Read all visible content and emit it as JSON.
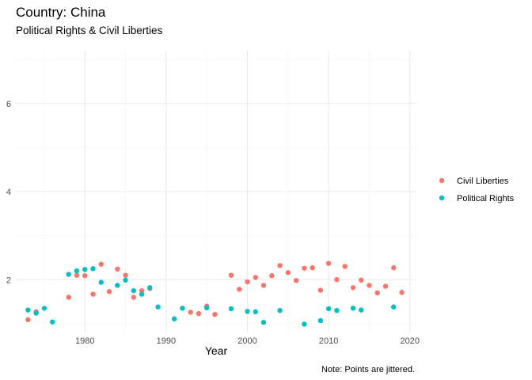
{
  "chart_data": {
    "type": "scatter",
    "title": "Country: China",
    "subtitle": "Political Rights & Civil Liberties",
    "xlabel": "Year",
    "ylabel": "",
    "caption": "Note: Points are jittered.",
    "xlim": [
      1971.5,
      2020.8
    ],
    "ylim": [
      0.8,
      7.2
    ],
    "x_ticks": [
      1980,
      1990,
      2000,
      2010,
      2020
    ],
    "y_ticks": [
      2,
      4,
      6
    ],
    "grid": true,
    "legend_position": "right",
    "series": [
      {
        "name": "Civil Liberties",
        "color": "#F8766D",
        "points": [
          [
            1973,
            1.09
          ],
          [
            1974,
            1.27
          ],
          [
            1978,
            1.6
          ],
          [
            1979,
            2.1
          ],
          [
            1980,
            2.09
          ],
          [
            1981,
            1.67
          ],
          [
            1982,
            2.35
          ],
          [
            1983,
            1.73
          ],
          [
            1984,
            2.24
          ],
          [
            1985,
            2.1
          ],
          [
            1986,
            1.6
          ],
          [
            1987,
            1.75
          ],
          [
            1988,
            1.8
          ],
          [
            1993,
            1.26
          ],
          [
            1994,
            1.23
          ],
          [
            1995,
            1.4
          ],
          [
            1996,
            1.21
          ],
          [
            1998,
            2.1
          ],
          [
            1999,
            1.78
          ],
          [
            2000,
            1.95
          ],
          [
            2001,
            2.05
          ],
          [
            2002,
            1.87
          ],
          [
            2003,
            2.09
          ],
          [
            2004,
            2.32
          ],
          [
            2005,
            2.16
          ],
          [
            2006,
            1.98
          ],
          [
            2007,
            2.26
          ],
          [
            2008,
            2.27
          ],
          [
            2009,
            1.76
          ],
          [
            2010,
            2.37
          ],
          [
            2011,
            2.0
          ],
          [
            2012,
            2.3
          ],
          [
            2013,
            1.82
          ],
          [
            2014,
            1.99
          ],
          [
            2015,
            1.87
          ],
          [
            2016,
            1.7
          ],
          [
            2017,
            1.85
          ],
          [
            2018,
            2.27
          ],
          [
            2019,
            1.71
          ]
        ]
      },
      {
        "name": "Political Rights",
        "color": "#00BFC4",
        "points": [
          [
            1973,
            1.31
          ],
          [
            1974,
            1.24
          ],
          [
            1975,
            1.35
          ],
          [
            1976,
            1.04
          ],
          [
            1978,
            2.12
          ],
          [
            1979,
            2.2
          ],
          [
            1980,
            2.23
          ],
          [
            1981,
            2.25
          ],
          [
            1982,
            1.94
          ],
          [
            1984,
            1.87
          ],
          [
            1985,
            1.99
          ],
          [
            1986,
            1.75
          ],
          [
            1987,
            1.67
          ],
          [
            1988,
            1.82
          ],
          [
            1989,
            1.38
          ],
          [
            1991,
            1.11
          ],
          [
            1992,
            1.35
          ],
          [
            1995,
            1.36
          ],
          [
            1998,
            1.34
          ],
          [
            2000,
            1.28
          ],
          [
            2001,
            1.27
          ],
          [
            2002,
            1.03
          ],
          [
            2004,
            1.3
          ],
          [
            2007,
            0.99
          ],
          [
            2009,
            1.07
          ],
          [
            2010,
            1.34
          ],
          [
            2011,
            1.3
          ],
          [
            2013,
            1.35
          ],
          [
            2014,
            1.31
          ],
          [
            2018,
            1.38
          ]
        ]
      }
    ]
  }
}
